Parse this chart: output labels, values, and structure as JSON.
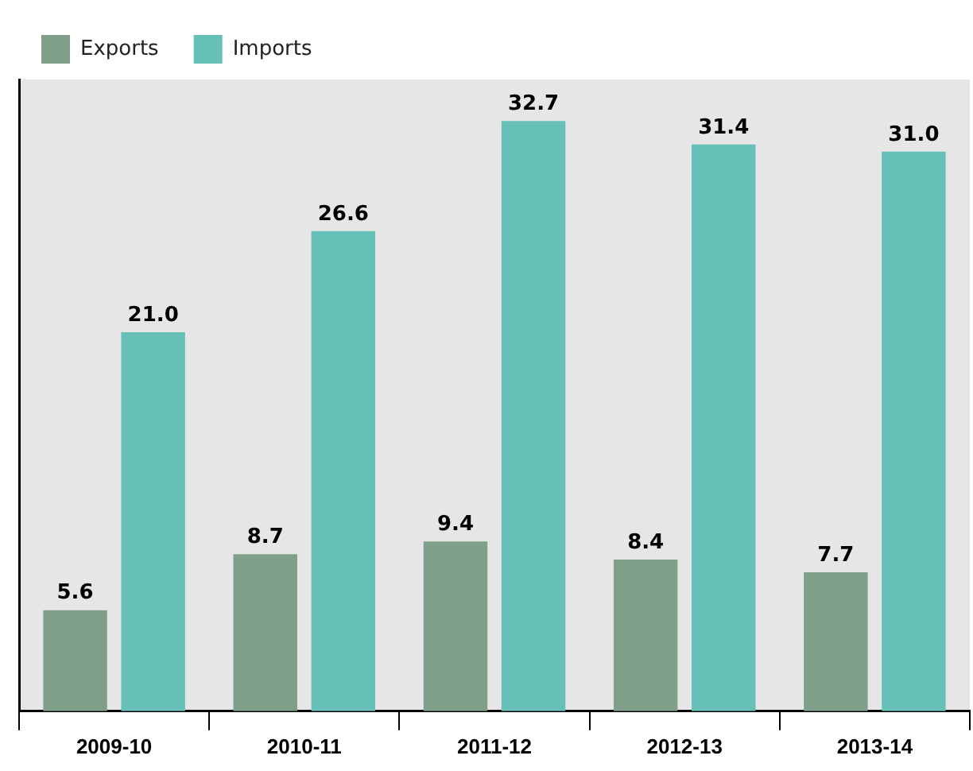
{
  "chart_data": {
    "type": "bar",
    "categories": [
      "2009-10",
      "2010-11",
      "2011-12",
      "2012-13",
      "2013-14"
    ],
    "series": [
      {
        "name": "Exports",
        "color": "#7f9f8b",
        "values": [
          5.6,
          8.7,
          9.4,
          8.4,
          7.7
        ],
        "value_labels": [
          "5.6",
          "8.7",
          "9.4",
          "8.4",
          "7.7"
        ]
      },
      {
        "name": "Imports",
        "color": "#66c0b8",
        "values": [
          21.0,
          26.6,
          32.7,
          31.4,
          31.0
        ],
        "value_labels": [
          "21.0",
          "26.6",
          "32.7",
          "31.4",
          "31.0"
        ]
      }
    ],
    "legend": "top left",
    "grid": false
  }
}
